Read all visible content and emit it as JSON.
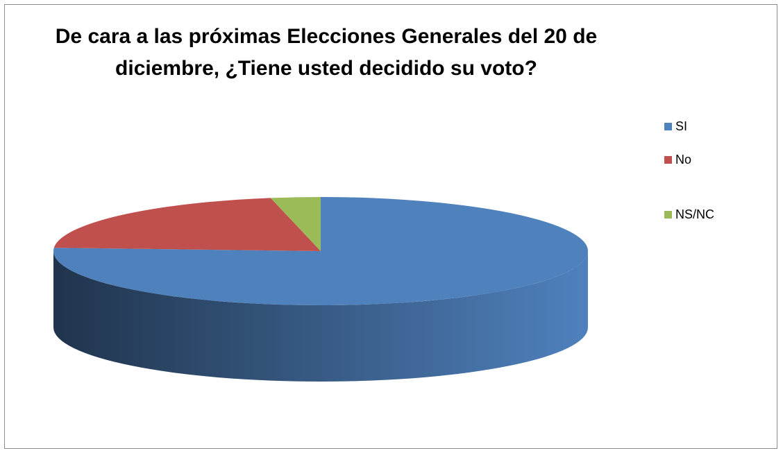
{
  "chart_data": {
    "type": "pie",
    "title": "De cara a las próximas Elecciones Generales del 20 de diciembre, ¿Tiene usted decidido su voto?",
    "categories": [
      "SI",
      "No",
      "NS/NC"
    ],
    "values": [
      76,
      21,
      3
    ],
    "colors": [
      "#4f81bd",
      "#c0504d",
      "#9bbb59"
    ],
    "legend": "right"
  }
}
